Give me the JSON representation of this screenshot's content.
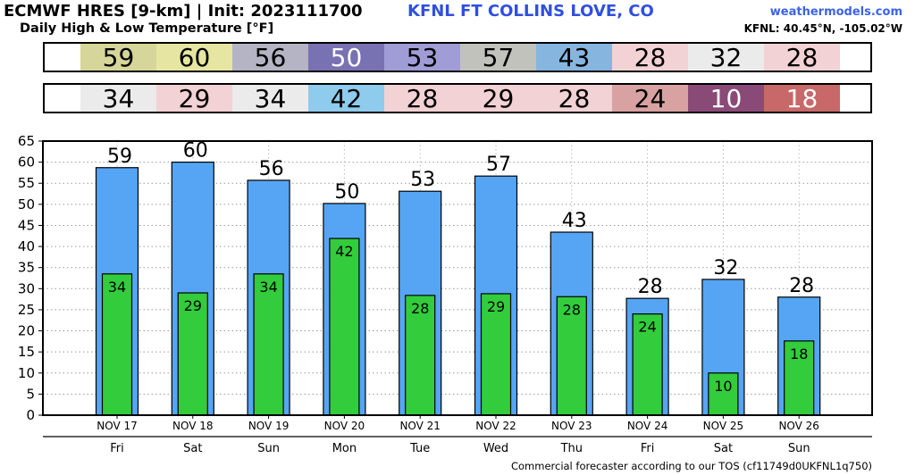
{
  "header": {
    "title": "ECMWF HRES [9-km] | Init: 2023111700",
    "subtitle": "Daily High & Low Temperature [°F]",
    "station": "KFNL FT COLLINS LOVE, CO",
    "brand": "weathermodels.com",
    "coords": "KFNL: 40.45°N, -105.02°W"
  },
  "strips": {
    "high": [
      {
        "value": "59",
        "color": "#d6d69a",
        "text": "#000000"
      },
      {
        "value": "60",
        "color": "#e6e6a2",
        "text": "#000000"
      },
      {
        "value": "56",
        "color": "#b4b4c4",
        "text": "#000000"
      },
      {
        "value": "50",
        "color": "#7872b2",
        "text": "#ffffff"
      },
      {
        "value": "53",
        "color": "#a09cd6",
        "text": "#000000"
      },
      {
        "value": "57",
        "color": "#c2c2bc",
        "text": "#000000"
      },
      {
        "value": "43",
        "color": "#86b6e0",
        "text": "#000000"
      },
      {
        "value": "28",
        "color": "#f2d2d4",
        "text": "#000000"
      },
      {
        "value": "32",
        "color": "#ebebeb",
        "text": "#000000"
      },
      {
        "value": "28",
        "color": "#f2d2d4",
        "text": "#000000"
      }
    ],
    "low": [
      {
        "value": "34",
        "color": "#ebebeb",
        "text": "#000000"
      },
      {
        "value": "29",
        "color": "#f2d2d4",
        "text": "#000000"
      },
      {
        "value": "34",
        "color": "#ebebeb",
        "text": "#000000"
      },
      {
        "value": "42",
        "color": "#8ecbec",
        "text": "#000000"
      },
      {
        "value": "28",
        "color": "#f2d2d4",
        "text": "#000000"
      },
      {
        "value": "29",
        "color": "#f2d2d4",
        "text": "#000000"
      },
      {
        "value": "28",
        "color": "#f2d2d4",
        "text": "#000000"
      },
      {
        "value": "24",
        "color": "#d8a2a2",
        "text": "#000000"
      },
      {
        "value": "10",
        "color": "#8a4a78",
        "text": "#ffffff"
      },
      {
        "value": "18",
        "color": "#c86868",
        "text": "#ffffff"
      }
    ]
  },
  "chart_data": {
    "type": "bar",
    "categories": [
      "NOV 17",
      "NOV 18",
      "NOV 19",
      "NOV 20",
      "NOV 21",
      "NOV 22",
      "NOV 23",
      "NOV 24",
      "NOV 25",
      "NOV 26"
    ],
    "weekdays": [
      "Fri",
      "Sat",
      "Sun",
      "Mon",
      "Tue",
      "Wed",
      "Thu",
      "Fri",
      "Sat",
      "Sun"
    ],
    "series": [
      {
        "values": [
          58.7,
          60,
          55.7,
          50.2,
          53.1,
          56.7,
          43.4,
          27.7,
          32.2,
          28
        ],
        "labels": [
          "59",
          "60",
          "56",
          "50",
          "53",
          "57",
          "43",
          "28",
          "32",
          "28"
        ],
        "color": "#56a5f4"
      },
      {
        "values": [
          33.5,
          29,
          33.5,
          41.9,
          28.4,
          28.8,
          28.1,
          24,
          10,
          17.6
        ],
        "labels": [
          "34",
          "29",
          "34",
          "42",
          "28",
          "29",
          "28",
          "24",
          "10",
          "18"
        ],
        "color": "#33cc3c"
      }
    ],
    "yticks": [
      0,
      5,
      10,
      15,
      20,
      25,
      30,
      35,
      40,
      45,
      50,
      55,
      60,
      65
    ],
    "ylim": [
      0,
      65
    ],
    "grid": true
  },
  "footer": "Commercial forecaster according to our TOS (cf11749d0UKFNL1q750)"
}
